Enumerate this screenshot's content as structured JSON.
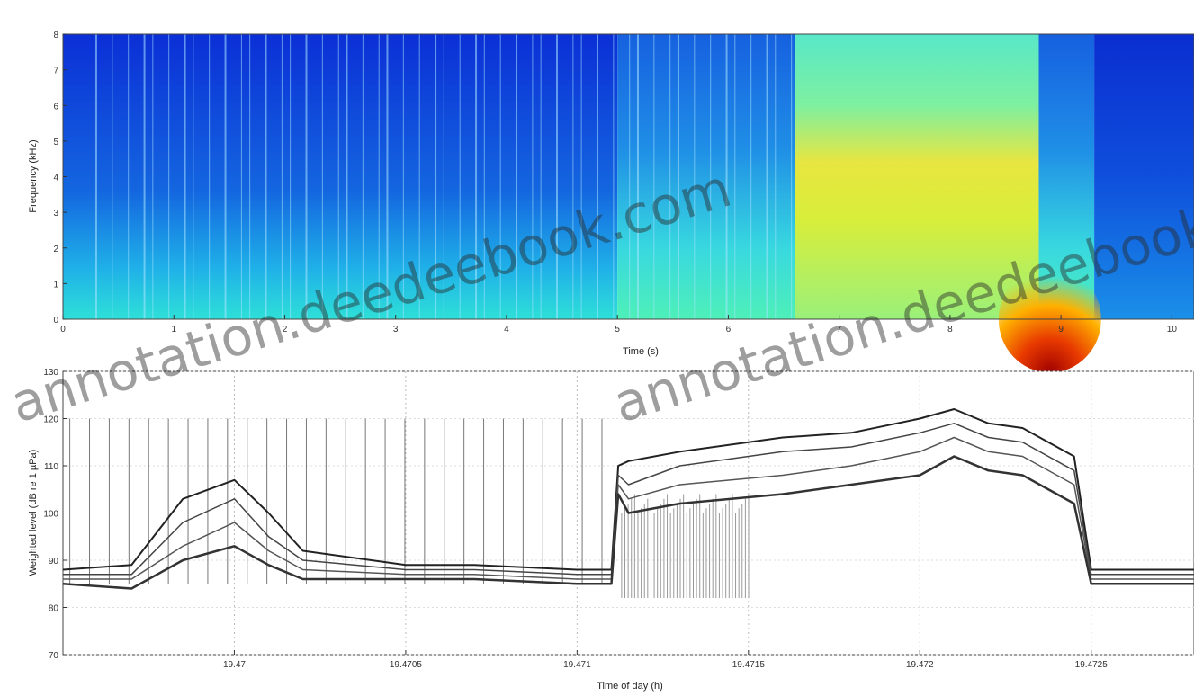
{
  "chart_data": [
    {
      "type": "heatmap",
      "title": "",
      "xlabel": "Time (s)",
      "ylabel": "Frequency (kHz)",
      "xlim": [
        0,
        10.2
      ],
      "ylim": [
        0,
        8
      ],
      "x_ticks": [
        0,
        1,
        2,
        3,
        4,
        5,
        6,
        7,
        8,
        9,
        10
      ],
      "y_ticks": [
        0,
        1,
        2,
        3,
        4,
        5,
        6,
        7,
        8
      ],
      "colormap": "jet",
      "regions": [
        {
          "t_start": 0.0,
          "t_end": 5.0,
          "intensity": 0.18
        },
        {
          "t_start": 5.0,
          "t_end": 6.6,
          "intensity": 0.38
        },
        {
          "t_start": 6.6,
          "t_end": 8.8,
          "intensity": 0.52
        },
        {
          "t_start": 8.8,
          "t_end": 9.3,
          "intensity": 0.45
        },
        {
          "t_start": 9.3,
          "t_end": 10.2,
          "intensity": 0.12
        }
      ],
      "hotspot": {
        "t_start": 8.6,
        "t_end": 9.2,
        "f_max": 1.5,
        "intensity": 0.92
      }
    },
    {
      "type": "line",
      "title": "",
      "xlabel": "Time of day (h)",
      "ylabel": "Weighted level (dB re 1 µPa)",
      "ylim": [
        70,
        130
      ],
      "y_ticks": [
        70,
        80,
        90,
        100,
        110,
        120,
        130
      ],
      "xlim": [
        19.4695,
        19.4728
      ],
      "x_ticks": [
        19.47,
        19.4705,
        19.471,
        19.4715,
        19.472,
        19.4725
      ],
      "x_tick_labels": [
        "19.47",
        "19.4705",
        "19.471",
        "19.4715",
        "19.472",
        "19.4725"
      ],
      "series": [
        {
          "x": [
            19.4695,
            19.4697,
            19.46985,
            19.47,
            19.4701,
            19.4702,
            19.4705,
            19.4707,
            19.471,
            19.4711,
            19.47112,
            19.47115,
            19.4713,
            19.4716,
            19.4718,
            19.472,
            19.4721,
            19.4722,
            19.4723,
            19.47245,
            19.4725,
            19.4728
          ],
          "values": [
            88,
            89,
            103,
            107,
            100,
            92,
            89,
            89,
            88,
            88,
            110,
            111,
            113,
            116,
            117,
            120,
            122,
            119,
            118,
            112,
            88,
            88
          ]
        },
        {
          "x": [
            19.4695,
            19.4697,
            19.46985,
            19.47,
            19.4701,
            19.4702,
            19.4705,
            19.4707,
            19.471,
            19.4711,
            19.47112,
            19.47115,
            19.4713,
            19.4716,
            19.4718,
            19.472,
            19.4721,
            19.4722,
            19.4723,
            19.47245,
            19.4725,
            19.4728
          ],
          "values": [
            87,
            87,
            98,
            103,
            95,
            90,
            88,
            88,
            87,
            87,
            108,
            106,
            110,
            113,
            114,
            117,
            119,
            116,
            115,
            109,
            87,
            87
          ]
        },
        {
          "x": [
            19.4695,
            19.4697,
            19.46985,
            19.47,
            19.4701,
            19.4702,
            19.4705,
            19.4707,
            19.471,
            19.4711,
            19.47112,
            19.47115,
            19.4713,
            19.4716,
            19.4718,
            19.472,
            19.4721,
            19.4722,
            19.4723,
            19.47245,
            19.4725,
            19.4728
          ],
          "values": [
            86,
            86,
            93,
            98,
            92,
            88,
            87,
            87,
            86,
            86,
            106,
            103,
            106,
            108,
            110,
            113,
            116,
            113,
            112,
            106,
            86,
            86
          ]
        },
        {
          "x": [
            19.4695,
            19.4697,
            19.46985,
            19.47,
            19.4701,
            19.4702,
            19.4705,
            19.4707,
            19.471,
            19.4711,
            19.47112,
            19.47115,
            19.4713,
            19.4716,
            19.4718,
            19.472,
            19.4721,
            19.4722,
            19.4723,
            19.47245,
            19.4725,
            19.4728
          ],
          "values": [
            85,
            84,
            90,
            93,
            89,
            86,
            86,
            86,
            85,
            85,
            104,
            100,
            102,
            104,
            106,
            108,
            112,
            109,
            108,
            102,
            85,
            85
          ]
        }
      ],
      "grid": true
    }
  ],
  "watermark": "annotation.deedeebook.com"
}
